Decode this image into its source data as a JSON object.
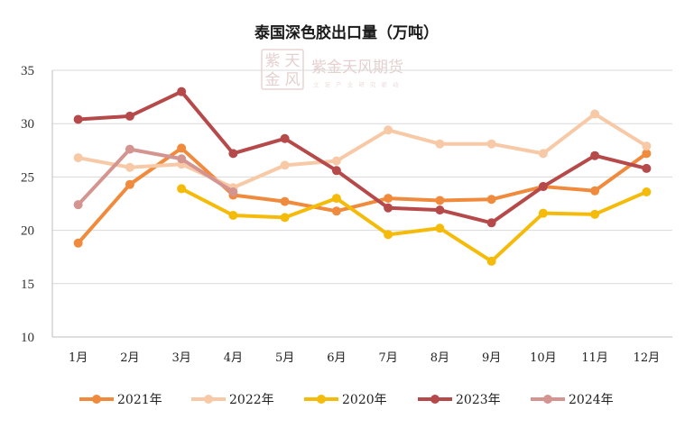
{
  "chart_data": {
    "type": "line",
    "title": "泰国深色胶出口量（万吨）",
    "categories": [
      "1月",
      "2月",
      "3月",
      "4月",
      "5月",
      "6月",
      "7月",
      "8月",
      "9月",
      "10月",
      "11月",
      "12月"
    ],
    "ylim": [
      10,
      35
    ],
    "yticks": [
      10,
      15,
      20,
      25,
      30,
      35
    ],
    "grid": true,
    "legend_position": "bottom",
    "series": [
      {
        "name": "2021年",
        "color": "#f08a3c",
        "values": [
          18.8,
          24.3,
          27.7,
          23.3,
          22.7,
          21.8,
          23.0,
          22.8,
          22.9,
          24.1,
          23.7,
          27.2
        ]
      },
      {
        "name": "2022年",
        "color": "#f8c9a6",
        "values": [
          26.8,
          25.9,
          26.2,
          24.0,
          26.1,
          26.5,
          29.4,
          28.1,
          28.1,
          27.2,
          30.9,
          27.9
        ]
      },
      {
        "name": "2020年",
        "color": "#f5bb0a",
        "values": [
          null,
          null,
          23.9,
          21.4,
          21.2,
          23.0,
          19.6,
          20.2,
          17.1,
          21.6,
          21.5,
          23.6
        ]
      },
      {
        "name": "2023年",
        "color": "#b64a4a",
        "values": [
          30.4,
          30.7,
          33.0,
          27.2,
          28.6,
          25.6,
          22.1,
          21.9,
          20.7,
          24.1,
          27.0,
          25.8
        ]
      },
      {
        "name": "2024年",
        "color": "#d49490",
        "values": [
          22.4,
          27.6,
          26.7,
          23.6,
          null,
          null,
          null,
          null,
          null,
          null,
          null,
          null
        ]
      }
    ]
  },
  "watermark": {
    "logo_chars": [
      "紫",
      "天",
      "金",
      "风"
    ],
    "company": "紫金天风期货",
    "slogan": "立 足 产 业   研 究 驱 动"
  }
}
